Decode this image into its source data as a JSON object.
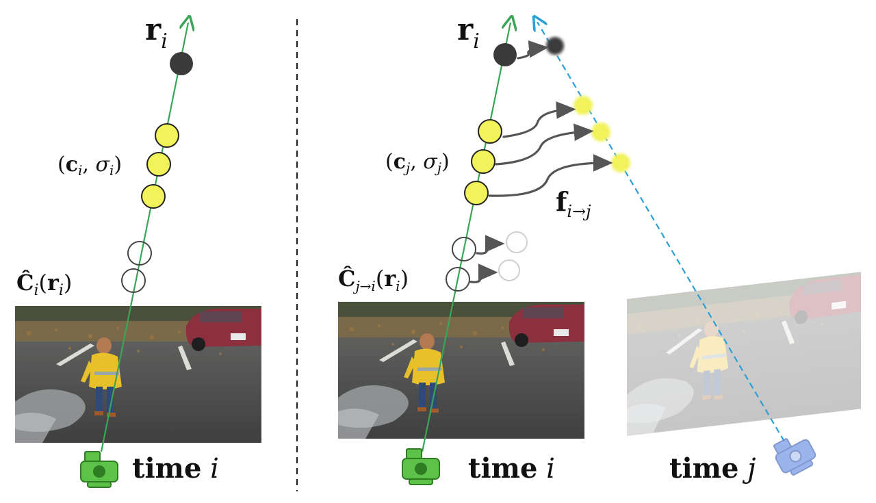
{
  "left_panel": {
    "ray_label": {
      "main": "r",
      "sub": "i"
    },
    "sample_label": "(c_i, σ_i)",
    "sample_label_parts": {
      "c": "c",
      "c_sub": "i",
      "sigma": "σ",
      "sigma_sub": "i"
    },
    "color_label_parts": {
      "C": "Ĉ",
      "C_sub": "i",
      "r": "r",
      "r_sub": "i"
    },
    "time_label": {
      "word": "time",
      "var": "i"
    }
  },
  "right_panel": {
    "ray_label": {
      "main": "r",
      "sub": "i"
    },
    "sample_label_parts": {
      "c": "c",
      "c_sub": "j",
      "sigma": "σ",
      "sigma_sub": "j"
    },
    "color_label_parts": {
      "C": "Ĉ",
      "C_sub": "j→i",
      "r": "r",
      "r_sub": "i"
    },
    "flow_label": {
      "main": "f",
      "sub": "i→j"
    },
    "time_i_label": {
      "word": "time",
      "var": "i"
    },
    "time_j_label": {
      "word": "time",
      "var": "j"
    }
  },
  "colors": {
    "ray": "#3aa556",
    "ray_j": "#2a9fd6",
    "sample_fill": "#f2f25a",
    "sample_stroke": "#222222",
    "opaque_point": "#3a3a3a",
    "flow_arrow": "#555555",
    "camera_i": "#5cc24a",
    "camera_j": "#8aa8e8"
  },
  "icons": [
    "camera-icon",
    "camera-icon-warped"
  ]
}
